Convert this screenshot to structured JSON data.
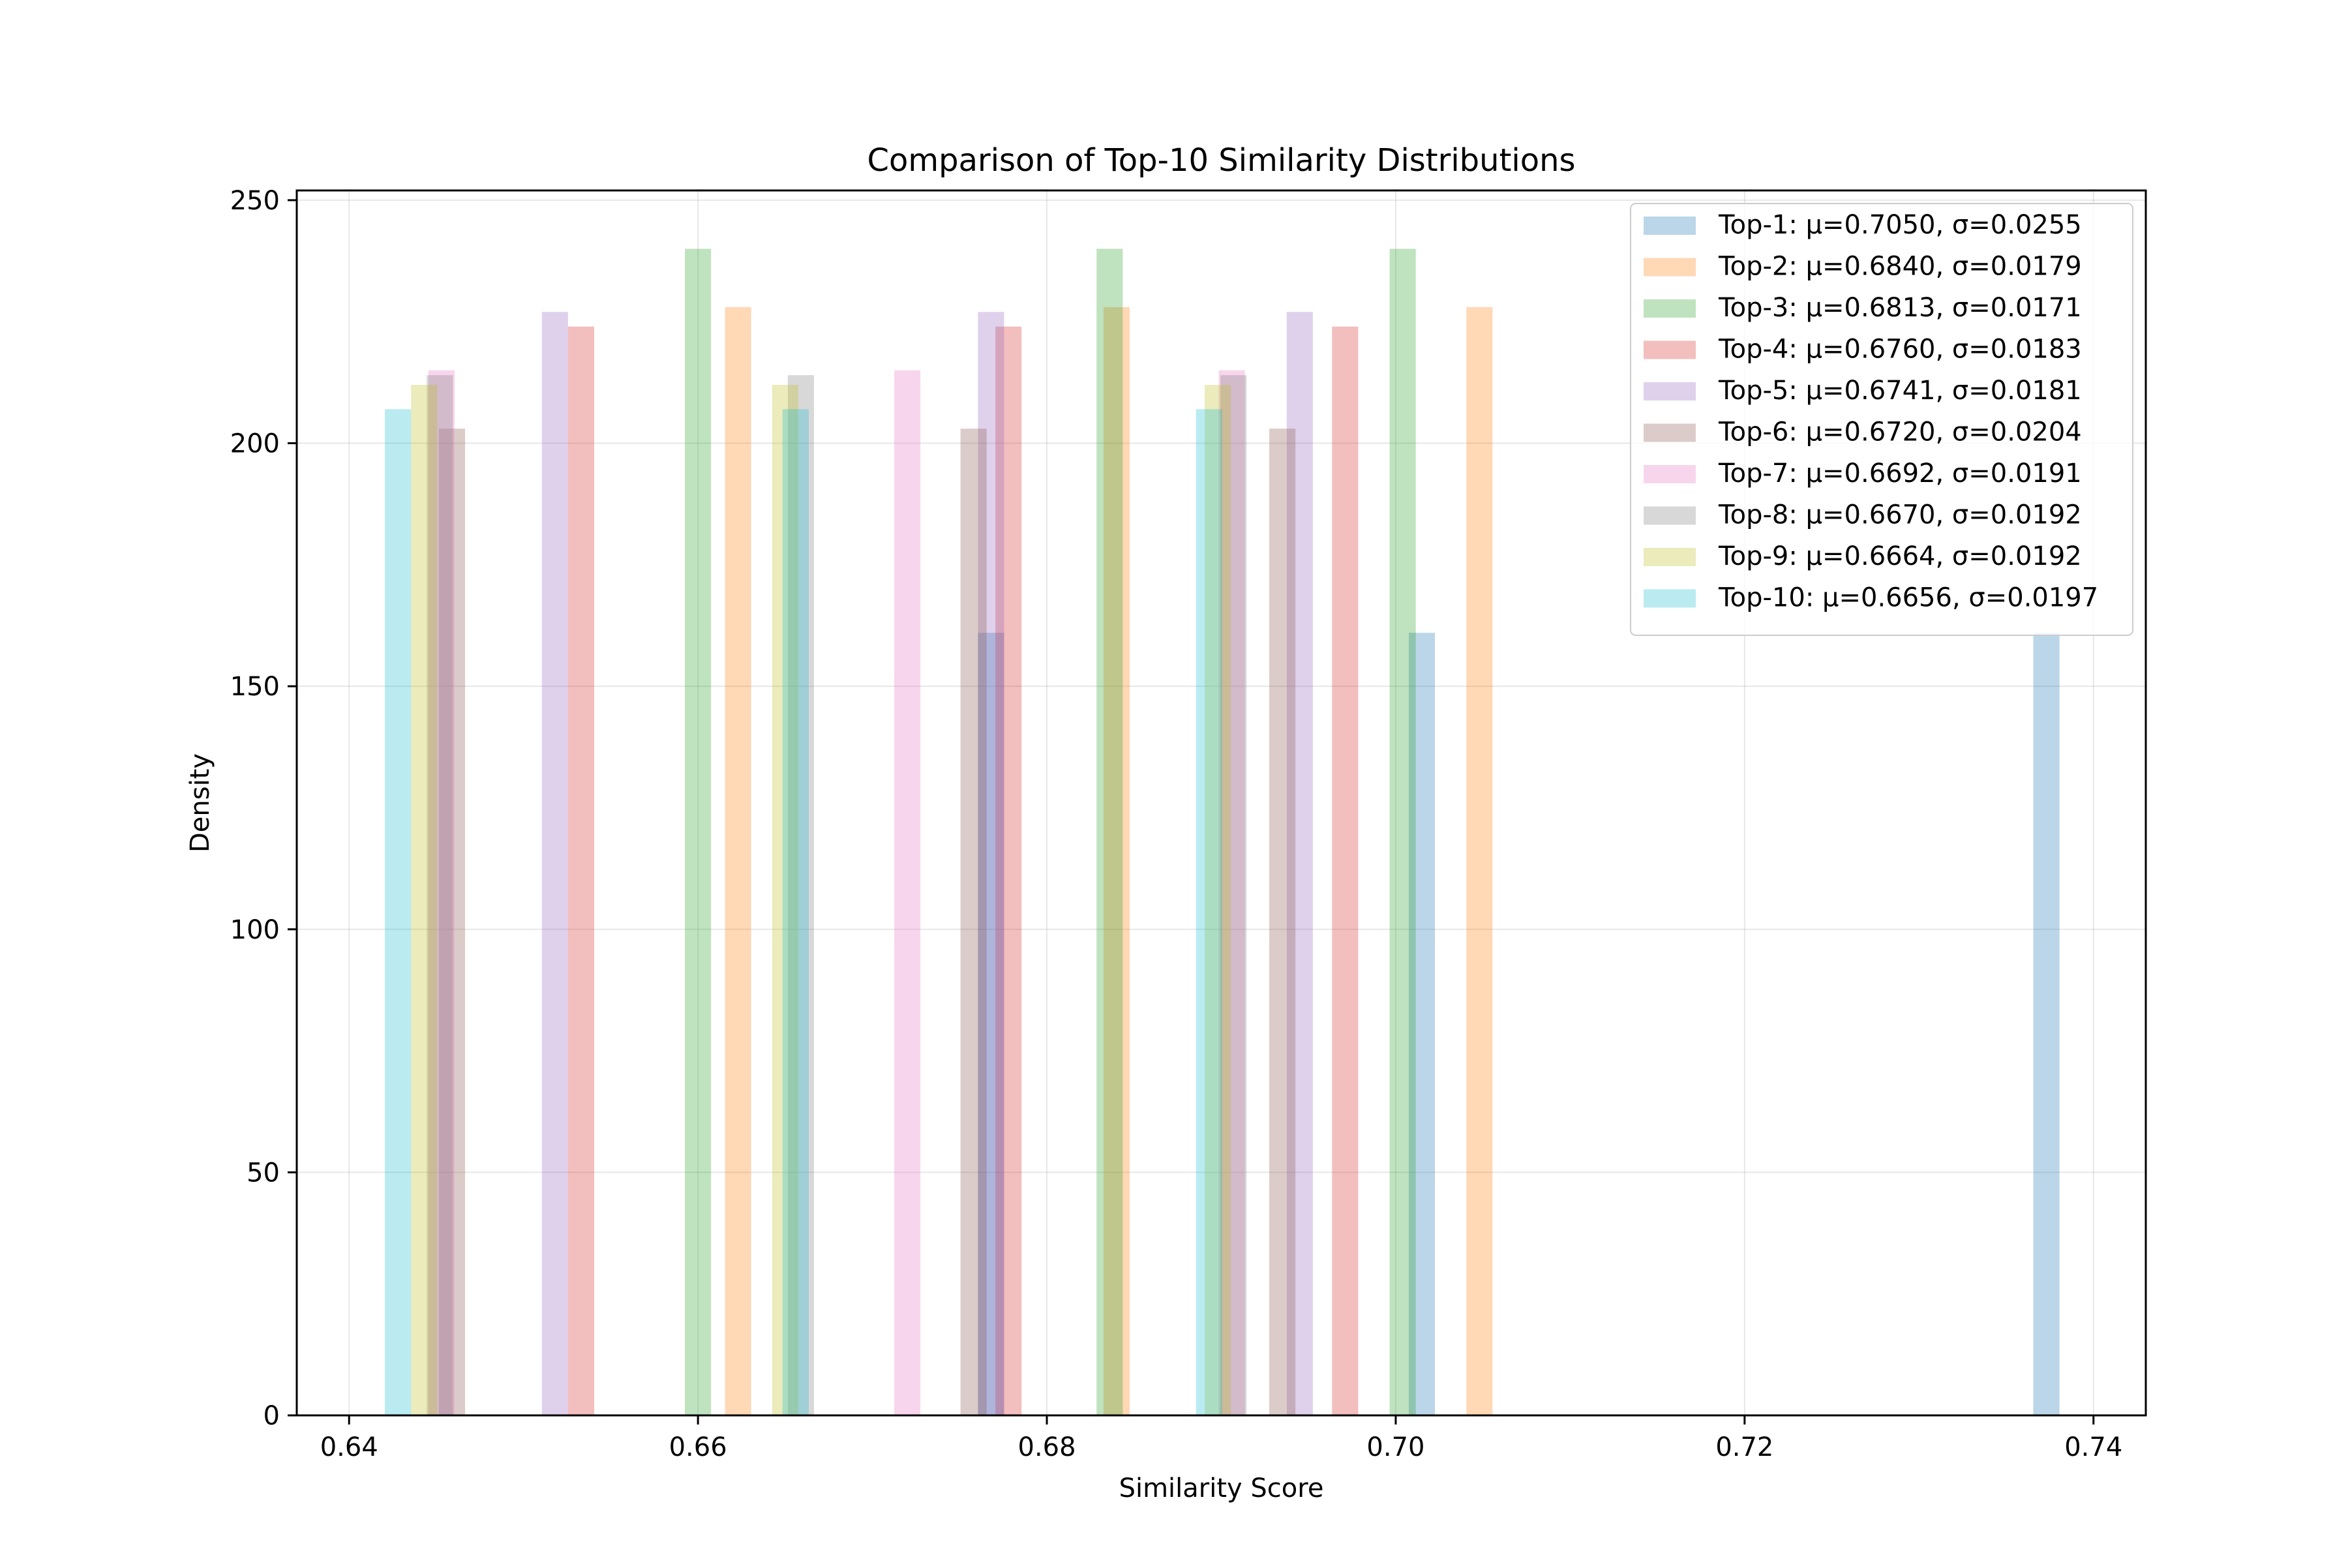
{
  "chart_data": {
    "type": "bar",
    "title": "Comparison of Top-10 Similarity Distributions",
    "xlabel": "Similarity Score",
    "ylabel": "Density",
    "xlim": [
      0.637,
      0.743
    ],
    "ylim": [
      0,
      252
    ],
    "xticks": [
      0.64,
      0.66,
      0.68,
      0.7,
      0.72,
      0.74
    ],
    "xtick_labels": [
      "0.64",
      "0.66",
      "0.68",
      "0.70",
      "0.72",
      "0.74"
    ],
    "yticks": [
      0,
      50,
      100,
      150,
      200,
      250
    ],
    "ytick_labels": [
      "0",
      "50",
      "100",
      "150",
      "200",
      "250"
    ],
    "grid": true,
    "legend_position": "top-right",
    "bar_width": 0.0015,
    "series": [
      {
        "name": "Top-1: μ=0.7050, σ=0.0255",
        "color": "#1f77b4",
        "bins": [
          [
            0.6768,
            161
          ],
          [
            0.7015,
            161
          ],
          [
            0.7373,
            161
          ]
        ]
      },
      {
        "name": "Top-2: μ=0.6840, σ=0.0179",
        "color": "#ff7f0e",
        "bins": [
          [
            0.6623,
            228
          ],
          [
            0.684,
            228
          ],
          [
            0.7048,
            228
          ]
        ]
      },
      {
        "name": "Top-3: μ=0.6813, σ=0.0171",
        "color": "#2ca02c",
        "bins": [
          [
            0.66,
            240
          ],
          [
            0.6836,
            240
          ],
          [
            0.7004,
            240
          ]
        ]
      },
      {
        "name": "Top-4: μ=0.6760, σ=0.0183",
        "color": "#d62728",
        "bins": [
          [
            0.6533,
            224
          ],
          [
            0.6778,
            224
          ],
          [
            0.6971,
            224
          ]
        ]
      },
      {
        "name": "Top-5: μ=0.6741, σ=0.0181",
        "color": "#9467bd",
        "bins": [
          [
            0.6518,
            227
          ],
          [
            0.6768,
            227
          ],
          [
            0.6945,
            227
          ]
        ]
      },
      {
        "name": "Top-6: μ=0.6720, σ=0.0204",
        "color": "#8c564b",
        "bins": [
          [
            0.6459,
            203
          ],
          [
            0.6758,
            203
          ],
          [
            0.6935,
            203
          ]
        ]
      },
      {
        "name": "Top-7: μ=0.6692, σ=0.0191",
        "color": "#e377c2",
        "bins": [
          [
            0.6453,
            215
          ],
          [
            0.672,
            215
          ],
          [
            0.6906,
            215
          ]
        ]
      },
      {
        "name": "Top-8: μ=0.6670, σ=0.0192",
        "color": "#7f7f7f",
        "bins": [
          [
            0.6452,
            214
          ],
          [
            0.6659,
            214
          ],
          [
            0.6907,
            214
          ]
        ]
      },
      {
        "name": "Top-9: μ=0.6664, σ=0.0192",
        "color": "#bcbd22",
        "bins": [
          [
            0.6443,
            212
          ],
          [
            0.665,
            212
          ],
          [
            0.6898,
            212
          ]
        ]
      },
      {
        "name": "Top-10: μ=0.6656, σ=0.0197",
        "color": "#17becf",
        "bins": [
          [
            0.6428,
            207
          ],
          [
            0.6656,
            207
          ],
          [
            0.6893,
            207
          ]
        ]
      }
    ]
  }
}
